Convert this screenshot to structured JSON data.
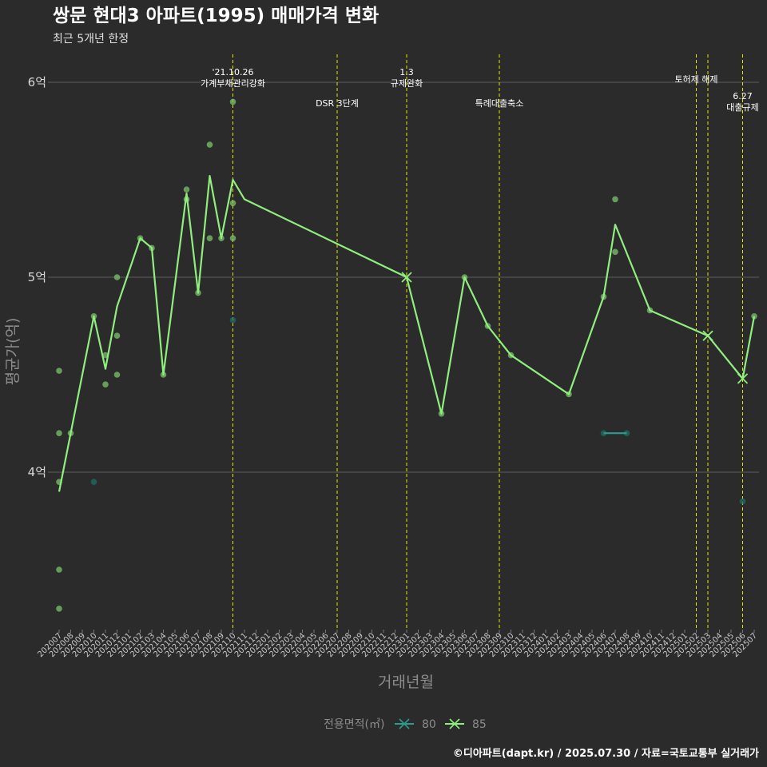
{
  "chart_data": {
    "type": "line",
    "title": "쌍문 현대3 아파트(1995) 매매가격 변화",
    "subtitle": "최근 5개년 한정",
    "xlabel": "거래년월",
    "ylabel": "평균가(억)",
    "caption": "©디아파트(dapt.kr) / 2025.07.30 / 자료=국토교통부 실거래가",
    "ylim": [
      3.2,
      6.1
    ],
    "yticks": [
      4,
      5,
      6
    ],
    "ytick_labels": [
      "4억",
      "5억",
      "6억"
    ],
    "grid": true,
    "legend_position": "bottom",
    "legend_title": "전용면적(㎡)",
    "categories": [
      "202007",
      "202008",
      "202009",
      "202010",
      "202011",
      "202012",
      "202101",
      "202102",
      "202103",
      "202104",
      "202105",
      "202106",
      "202107",
      "202108",
      "202109",
      "202110",
      "202111",
      "202112",
      "202201",
      "202202",
      "202203",
      "202204",
      "202205",
      "202206",
      "202207",
      "202208",
      "202209",
      "202210",
      "202211",
      "202212",
      "202301",
      "202302",
      "202303",
      "202304",
      "202305",
      "202306",
      "202307",
      "202308",
      "202309",
      "202310",
      "202311",
      "202312",
      "202401",
      "202402",
      "202403",
      "202404",
      "202405",
      "202406",
      "202407",
      "202408",
      "202409",
      "202410",
      "202411",
      "202412",
      "202501",
      "202502",
      "202503",
      "202504",
      "202505",
      "202506",
      "202507"
    ],
    "series": [
      {
        "name": "80",
        "color": "#2a9d8f",
        "line_points": [
          {
            "x": "202406",
            "y": 4.2
          },
          {
            "x": "202408",
            "y": 4.2
          }
        ],
        "scatter_points": [
          {
            "x": "202010",
            "y": 3.95
          },
          {
            "x": "202110",
            "y": 4.78
          },
          {
            "x": "202406",
            "y": 4.2
          },
          {
            "x": "202408",
            "y": 4.2
          },
          {
            "x": "202506",
            "y": 3.85
          }
        ]
      },
      {
        "name": "85",
        "color": "#90ee7e",
        "line_points": [
          {
            "x": "202007",
            "y": 3.9
          },
          {
            "x": "202008",
            "y": 4.2
          },
          {
            "x": "202010",
            "y": 4.8
          },
          {
            "x": "202011",
            "y": 4.53
          },
          {
            "x": "202012",
            "y": 4.85
          },
          {
            "x": "202102",
            "y": 5.2
          },
          {
            "x": "202103",
            "y": 5.15
          },
          {
            "x": "202104",
            "y": 4.5
          },
          {
            "x": "202106",
            "y": 5.43
          },
          {
            "x": "202107",
            "y": 4.92
          },
          {
            "x": "202108",
            "y": 5.52
          },
          {
            "x": "202109",
            "y": 5.2
          },
          {
            "x": "202110",
            "y": 5.5
          },
          {
            "x": "202111",
            "y": 5.4
          },
          {
            "x": "202301",
            "y": 5.0
          },
          {
            "x": "202304",
            "y": 4.3
          },
          {
            "x": "202306",
            "y": 5.0
          },
          {
            "x": "202308",
            "y": 4.75
          },
          {
            "x": "202310",
            "y": 4.6
          },
          {
            "x": "202403",
            "y": 4.4
          },
          {
            "x": "202406",
            "y": 4.9
          },
          {
            "x": "202407",
            "y": 5.27
          },
          {
            "x": "202410",
            "y": 4.83
          },
          {
            "x": "202503",
            "y": 4.7
          },
          {
            "x": "202506",
            "y": 4.48
          },
          {
            "x": "202507",
            "y": 4.8
          }
        ],
        "cross_points": [
          {
            "x": "202301",
            "y": 5.0
          },
          {
            "x": "202503",
            "y": 4.7
          },
          {
            "x": "202506",
            "y": 4.48
          }
        ],
        "scatter_points": [
          {
            "x": "202007",
            "y": 4.52
          },
          {
            "x": "202007",
            "y": 4.2
          },
          {
            "x": "202007",
            "y": 3.95
          },
          {
            "x": "202007",
            "y": 3.5
          },
          {
            "x": "202007",
            "y": 3.3
          },
          {
            "x": "202008",
            "y": 4.2
          },
          {
            "x": "202010",
            "y": 4.8
          },
          {
            "x": "202011",
            "y": 4.6
          },
          {
            "x": "202011",
            "y": 4.45
          },
          {
            "x": "202012",
            "y": 5.0
          },
          {
            "x": "202012",
            "y": 4.7
          },
          {
            "x": "202012",
            "y": 4.5
          },
          {
            "x": "202102",
            "y": 5.2
          },
          {
            "x": "202103",
            "y": 5.15
          },
          {
            "x": "202104",
            "y": 4.5
          },
          {
            "x": "202106",
            "y": 5.45
          },
          {
            "x": "202106",
            "y": 5.4
          },
          {
            "x": "202107",
            "y": 4.92
          },
          {
            "x": "202108",
            "y": 5.68
          },
          {
            "x": "202108",
            "y": 5.2
          },
          {
            "x": "202109",
            "y": 5.2
          },
          {
            "x": "202110",
            "y": 5.9
          },
          {
            "x": "202110",
            "y": 5.38
          },
          {
            "x": "202110",
            "y": 5.2
          },
          {
            "x": "202304",
            "y": 4.3
          },
          {
            "x": "202306",
            "y": 5.0
          },
          {
            "x": "202308",
            "y": 4.75
          },
          {
            "x": "202310",
            "y": 4.6
          },
          {
            "x": "202403",
            "y": 4.4
          },
          {
            "x": "202406",
            "y": 4.9
          },
          {
            "x": "202407",
            "y": 5.4
          },
          {
            "x": "202407",
            "y": 5.13
          },
          {
            "x": "202410",
            "y": 4.83
          },
          {
            "x": "202507",
            "y": 4.8
          }
        ]
      }
    ],
    "events": [
      {
        "x": "202110",
        "label_lines": [
          "'21.10.26",
          "가계부채관리강화"
        ],
        "level": "high"
      },
      {
        "x": "202207",
        "label_lines": [
          "DSR 3단계"
        ],
        "level": "low"
      },
      {
        "x": "202301",
        "label_lines": [
          "1.3",
          "규제완화"
        ],
        "level": "high"
      },
      {
        "x": "202309",
        "label_lines": [
          "특례대출축소"
        ],
        "level": "low"
      },
      {
        "x": "202502",
        "label_lines": [
          "토허제 해제"
        ],
        "level": "mid"
      },
      {
        "x": "202503",
        "label_lines": [],
        "level": "none"
      },
      {
        "x": "202506",
        "label_lines": [
          "6.27",
          "대출규제"
        ],
        "level": "lower"
      }
    ],
    "event_line_color": "#e6e600"
  }
}
